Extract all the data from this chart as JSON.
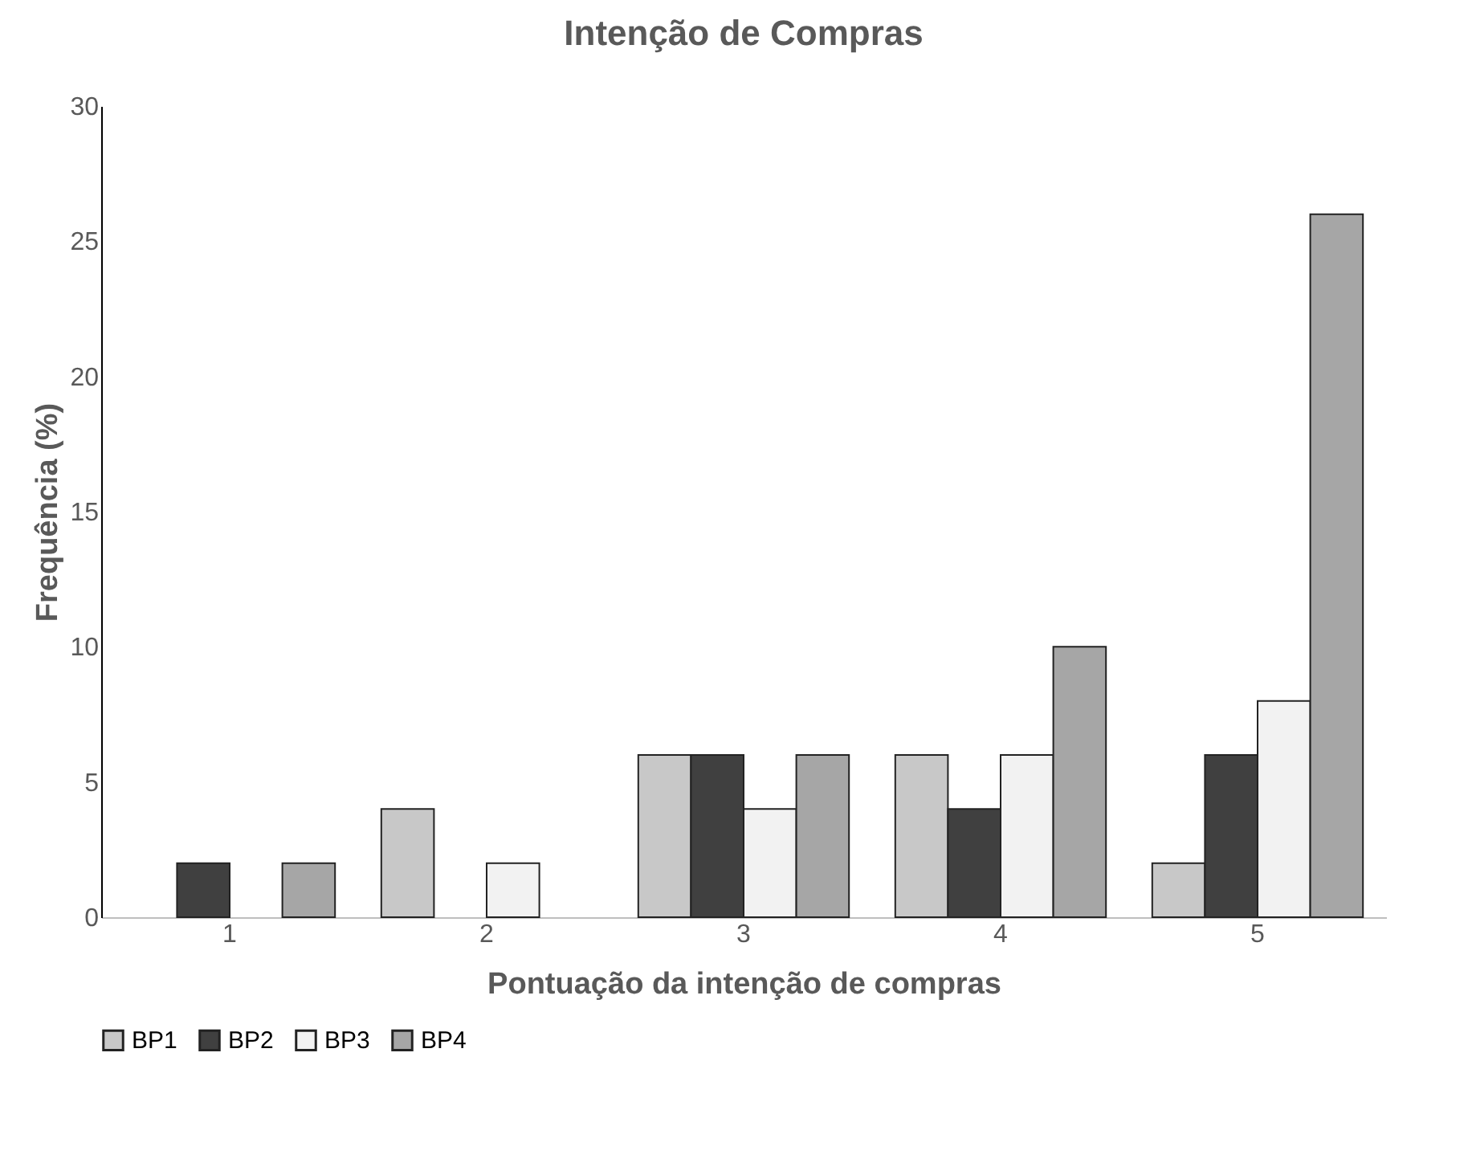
{
  "chart_data": {
    "type": "bar",
    "title": "Intenção de Compras",
    "xlabel": "Pontuação da intenção de compras",
    "ylabel": "Frequência (%)",
    "categories": [
      "1",
      "2",
      "3",
      "4",
      "5"
    ],
    "series": [
      {
        "name": "BP1",
        "color": "#c8c8c8",
        "values": [
          0,
          4,
          6,
          6,
          2
        ]
      },
      {
        "name": "BP2",
        "color": "#404040",
        "values": [
          2,
          0,
          6,
          4,
          6
        ]
      },
      {
        "name": "BP3",
        "color": "#f2f2f2",
        "values": [
          0,
          2,
          4,
          6,
          8
        ]
      },
      {
        "name": "BP4",
        "color": "#a6a6a6",
        "values": [
          2,
          0,
          6,
          10,
          26
        ]
      }
    ],
    "ylim": [
      0,
      30
    ],
    "yticks": [
      0,
      5,
      10,
      15,
      20,
      25,
      30
    ],
    "grid": false,
    "legend": "bottom"
  }
}
